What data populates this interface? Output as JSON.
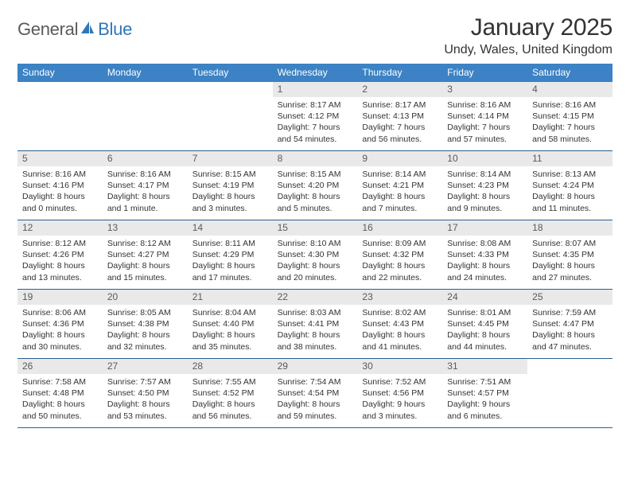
{
  "logo": {
    "text1": "General",
    "text2": "Blue"
  },
  "title": "January 2025",
  "location": "Undy, Wales, United Kingdom",
  "colors": {
    "header_bar": "#3c82c4",
    "week_divider": "#2f5e8f",
    "daynum_bg": "#e9e9ea",
    "logo_gray": "#5a5a5a",
    "logo_blue": "#2f77b6"
  },
  "weekdays": [
    "Sunday",
    "Monday",
    "Tuesday",
    "Wednesday",
    "Thursday",
    "Friday",
    "Saturday"
  ],
  "weeks": [
    [
      {
        "empty": true
      },
      {
        "empty": true
      },
      {
        "empty": true
      },
      {
        "day": "1",
        "sunrise": "Sunrise: 8:17 AM",
        "sunset": "Sunset: 4:12 PM",
        "day1": "Daylight: 7 hours",
        "day2": "and 54 minutes."
      },
      {
        "day": "2",
        "sunrise": "Sunrise: 8:17 AM",
        "sunset": "Sunset: 4:13 PM",
        "day1": "Daylight: 7 hours",
        "day2": "and 56 minutes."
      },
      {
        "day": "3",
        "sunrise": "Sunrise: 8:16 AM",
        "sunset": "Sunset: 4:14 PM",
        "day1": "Daylight: 7 hours",
        "day2": "and 57 minutes."
      },
      {
        "day": "4",
        "sunrise": "Sunrise: 8:16 AM",
        "sunset": "Sunset: 4:15 PM",
        "day1": "Daylight: 7 hours",
        "day2": "and 58 minutes."
      }
    ],
    [
      {
        "day": "5",
        "sunrise": "Sunrise: 8:16 AM",
        "sunset": "Sunset: 4:16 PM",
        "day1": "Daylight: 8 hours",
        "day2": "and 0 minutes."
      },
      {
        "day": "6",
        "sunrise": "Sunrise: 8:16 AM",
        "sunset": "Sunset: 4:17 PM",
        "day1": "Daylight: 8 hours",
        "day2": "and 1 minute."
      },
      {
        "day": "7",
        "sunrise": "Sunrise: 8:15 AM",
        "sunset": "Sunset: 4:19 PM",
        "day1": "Daylight: 8 hours",
        "day2": "and 3 minutes."
      },
      {
        "day": "8",
        "sunrise": "Sunrise: 8:15 AM",
        "sunset": "Sunset: 4:20 PM",
        "day1": "Daylight: 8 hours",
        "day2": "and 5 minutes."
      },
      {
        "day": "9",
        "sunrise": "Sunrise: 8:14 AM",
        "sunset": "Sunset: 4:21 PM",
        "day1": "Daylight: 8 hours",
        "day2": "and 7 minutes."
      },
      {
        "day": "10",
        "sunrise": "Sunrise: 8:14 AM",
        "sunset": "Sunset: 4:23 PM",
        "day1": "Daylight: 8 hours",
        "day2": "and 9 minutes."
      },
      {
        "day": "11",
        "sunrise": "Sunrise: 8:13 AM",
        "sunset": "Sunset: 4:24 PM",
        "day1": "Daylight: 8 hours",
        "day2": "and 11 minutes."
      }
    ],
    [
      {
        "day": "12",
        "sunrise": "Sunrise: 8:12 AM",
        "sunset": "Sunset: 4:26 PM",
        "day1": "Daylight: 8 hours",
        "day2": "and 13 minutes."
      },
      {
        "day": "13",
        "sunrise": "Sunrise: 8:12 AM",
        "sunset": "Sunset: 4:27 PM",
        "day1": "Daylight: 8 hours",
        "day2": "and 15 minutes."
      },
      {
        "day": "14",
        "sunrise": "Sunrise: 8:11 AM",
        "sunset": "Sunset: 4:29 PM",
        "day1": "Daylight: 8 hours",
        "day2": "and 17 minutes."
      },
      {
        "day": "15",
        "sunrise": "Sunrise: 8:10 AM",
        "sunset": "Sunset: 4:30 PM",
        "day1": "Daylight: 8 hours",
        "day2": "and 20 minutes."
      },
      {
        "day": "16",
        "sunrise": "Sunrise: 8:09 AM",
        "sunset": "Sunset: 4:32 PM",
        "day1": "Daylight: 8 hours",
        "day2": "and 22 minutes."
      },
      {
        "day": "17",
        "sunrise": "Sunrise: 8:08 AM",
        "sunset": "Sunset: 4:33 PM",
        "day1": "Daylight: 8 hours",
        "day2": "and 24 minutes."
      },
      {
        "day": "18",
        "sunrise": "Sunrise: 8:07 AM",
        "sunset": "Sunset: 4:35 PM",
        "day1": "Daylight: 8 hours",
        "day2": "and 27 minutes."
      }
    ],
    [
      {
        "day": "19",
        "sunrise": "Sunrise: 8:06 AM",
        "sunset": "Sunset: 4:36 PM",
        "day1": "Daylight: 8 hours",
        "day2": "and 30 minutes."
      },
      {
        "day": "20",
        "sunrise": "Sunrise: 8:05 AM",
        "sunset": "Sunset: 4:38 PM",
        "day1": "Daylight: 8 hours",
        "day2": "and 32 minutes."
      },
      {
        "day": "21",
        "sunrise": "Sunrise: 8:04 AM",
        "sunset": "Sunset: 4:40 PM",
        "day1": "Daylight: 8 hours",
        "day2": "and 35 minutes."
      },
      {
        "day": "22",
        "sunrise": "Sunrise: 8:03 AM",
        "sunset": "Sunset: 4:41 PM",
        "day1": "Daylight: 8 hours",
        "day2": "and 38 minutes."
      },
      {
        "day": "23",
        "sunrise": "Sunrise: 8:02 AM",
        "sunset": "Sunset: 4:43 PM",
        "day1": "Daylight: 8 hours",
        "day2": "and 41 minutes."
      },
      {
        "day": "24",
        "sunrise": "Sunrise: 8:01 AM",
        "sunset": "Sunset: 4:45 PM",
        "day1": "Daylight: 8 hours",
        "day2": "and 44 minutes."
      },
      {
        "day": "25",
        "sunrise": "Sunrise: 7:59 AM",
        "sunset": "Sunset: 4:47 PM",
        "day1": "Daylight: 8 hours",
        "day2": "and 47 minutes."
      }
    ],
    [
      {
        "day": "26",
        "sunrise": "Sunrise: 7:58 AM",
        "sunset": "Sunset: 4:48 PM",
        "day1": "Daylight: 8 hours",
        "day2": "and 50 minutes."
      },
      {
        "day": "27",
        "sunrise": "Sunrise: 7:57 AM",
        "sunset": "Sunset: 4:50 PM",
        "day1": "Daylight: 8 hours",
        "day2": "and 53 minutes."
      },
      {
        "day": "28",
        "sunrise": "Sunrise: 7:55 AM",
        "sunset": "Sunset: 4:52 PM",
        "day1": "Daylight: 8 hours",
        "day2": "and 56 minutes."
      },
      {
        "day": "29",
        "sunrise": "Sunrise: 7:54 AM",
        "sunset": "Sunset: 4:54 PM",
        "day1": "Daylight: 8 hours",
        "day2": "and 59 minutes."
      },
      {
        "day": "30",
        "sunrise": "Sunrise: 7:52 AM",
        "sunset": "Sunset: 4:56 PM",
        "day1": "Daylight: 9 hours",
        "day2": "and 3 minutes."
      },
      {
        "day": "31",
        "sunrise": "Sunrise: 7:51 AM",
        "sunset": "Sunset: 4:57 PM",
        "day1": "Daylight: 9 hours",
        "day2": "and 6 minutes."
      },
      {
        "empty": true
      }
    ]
  ]
}
